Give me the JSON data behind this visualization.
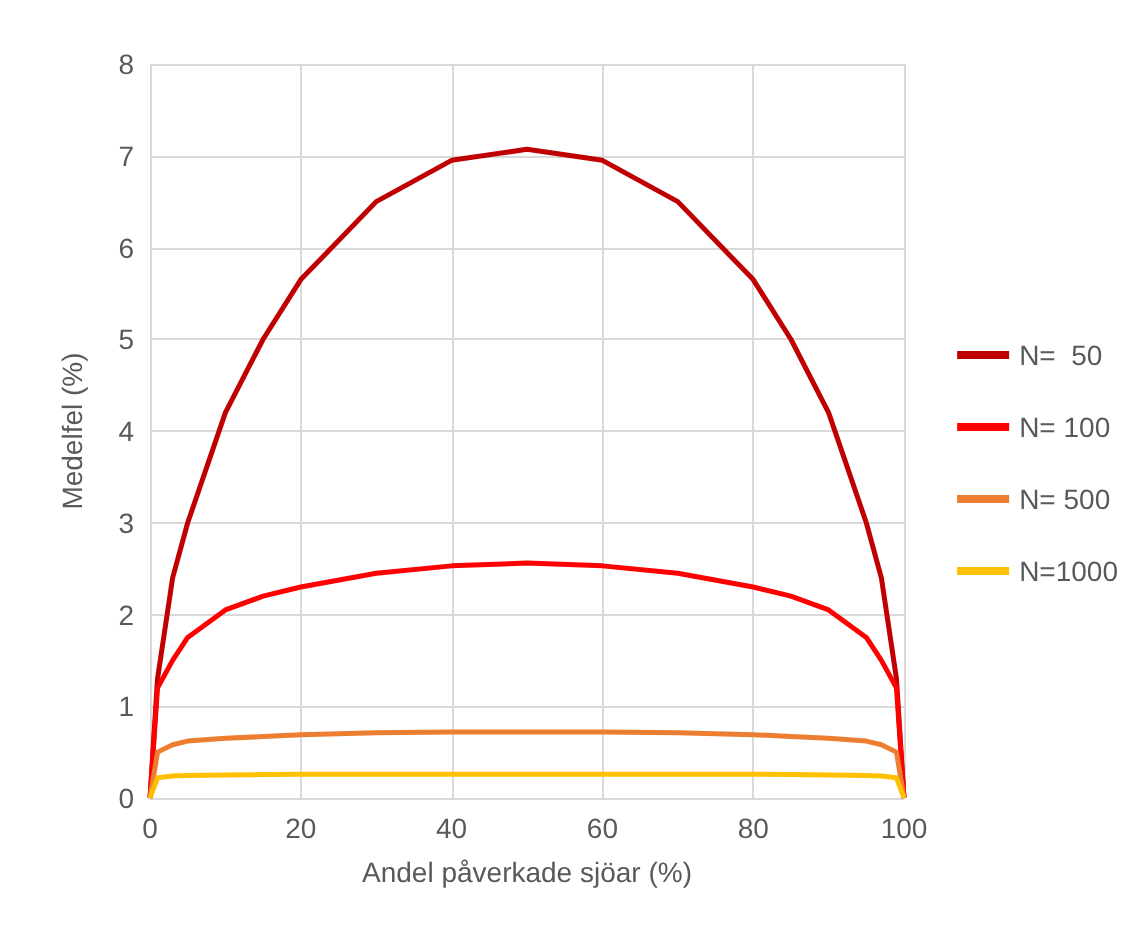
{
  "chart_data": {
    "type": "line",
    "xlabel": "Andel påverkade sjöar (%)",
    "ylabel": "Medelfel (%)",
    "x": [
      0,
      1,
      3,
      5,
      10,
      15,
      20,
      30,
      40,
      50,
      60,
      70,
      80,
      85,
      90,
      95,
      97,
      99,
      100
    ],
    "series": [
      {
        "name": "N=  50",
        "color": "#c00000",
        "values": [
          0,
          1.3,
          2.4,
          3.0,
          4.2,
          5.0,
          5.65,
          6.5,
          6.95,
          7.07,
          6.95,
          6.5,
          5.65,
          5.0,
          4.2,
          3.0,
          2.4,
          1.3,
          0
        ]
      },
      {
        "name": "N= 100",
        "color": "#ff0000",
        "values": [
          0,
          1.2,
          1.5,
          1.75,
          2.05,
          2.2,
          2.3,
          2.45,
          2.53,
          2.56,
          2.53,
          2.45,
          2.3,
          2.2,
          2.05,
          1.75,
          1.5,
          1.2,
          0
        ]
      },
      {
        "name": "N= 500",
        "color": "#ed7d31",
        "values": [
          0,
          0.5,
          0.58,
          0.62,
          0.65,
          0.67,
          0.69,
          0.71,
          0.72,
          0.72,
          0.72,
          0.71,
          0.69,
          0.67,
          0.65,
          0.62,
          0.58,
          0.5,
          0
        ]
      },
      {
        "name": "N=1000",
        "color": "#ffc000",
        "values": [
          0,
          0.22,
          0.24,
          0.245,
          0.25,
          0.255,
          0.26,
          0.26,
          0.26,
          0.26,
          0.26,
          0.26,
          0.26,
          0.255,
          0.25,
          0.245,
          0.24,
          0.22,
          0
        ]
      }
    ],
    "xlim": [
      0,
      100
    ],
    "xticks": [
      0,
      20,
      40,
      60,
      80,
      100
    ],
    "ylim": [
      0,
      8
    ],
    "yticks": [
      0,
      1,
      2,
      3,
      4,
      5,
      6,
      7,
      8
    ],
    "grid": true,
    "legend": "right",
    "marker": "none",
    "line_style": "solid"
  }
}
